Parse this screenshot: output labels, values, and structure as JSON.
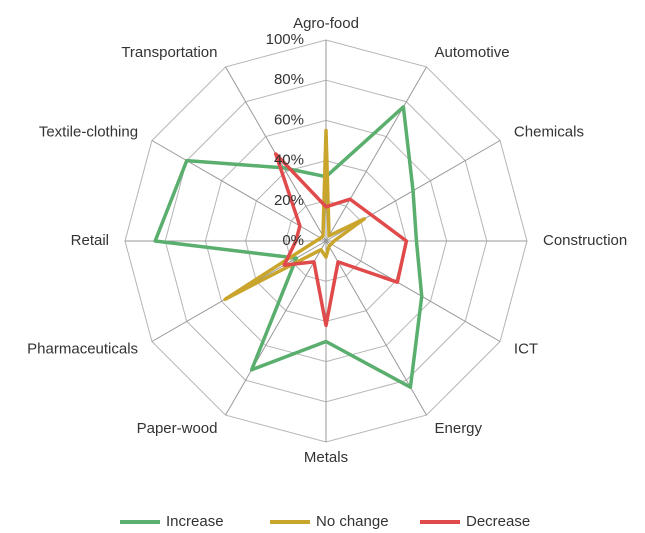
{
  "chart_data": {
    "type": "radar",
    "categories": [
      "Agro-food",
      "Automotive",
      "Chemicals",
      "Construction",
      "ICT",
      "Energy",
      "Metals",
      "Paper-wood",
      "Pharmaceuticals",
      "Retail",
      "Textile-clothing",
      "Transportation"
    ],
    "series": [
      {
        "name": "Increase",
        "color": "#5aae6e",
        "values": [
          32,
          77,
          50,
          45,
          55,
          84,
          50,
          74,
          17,
          85,
          80,
          42
        ]
      },
      {
        "name": "No change",
        "color": "#c9a52c",
        "values": [
          55,
          3,
          22,
          4,
          3,
          3,
          8,
          5,
          58,
          5,
          3,
          3
        ]
      },
      {
        "name": "Decrease",
        "color": "#e04a4a",
        "values": [
          17,
          24,
          26,
          40,
          41,
          12,
          42,
          12,
          24,
          15,
          15,
          50
        ]
      }
    ],
    "ylim": [
      0,
      100
    ],
    "yticks": [
      {
        "value": 0,
        "label": "0%"
      },
      {
        "value": 20,
        "label": "20%"
      },
      {
        "value": 40,
        "label": "40%"
      },
      {
        "value": 60,
        "label": "60%"
      },
      {
        "value": 80,
        "label": "80%"
      },
      {
        "value": 100,
        "label": "100%"
      }
    ],
    "grid": true,
    "legend": "bottom"
  }
}
